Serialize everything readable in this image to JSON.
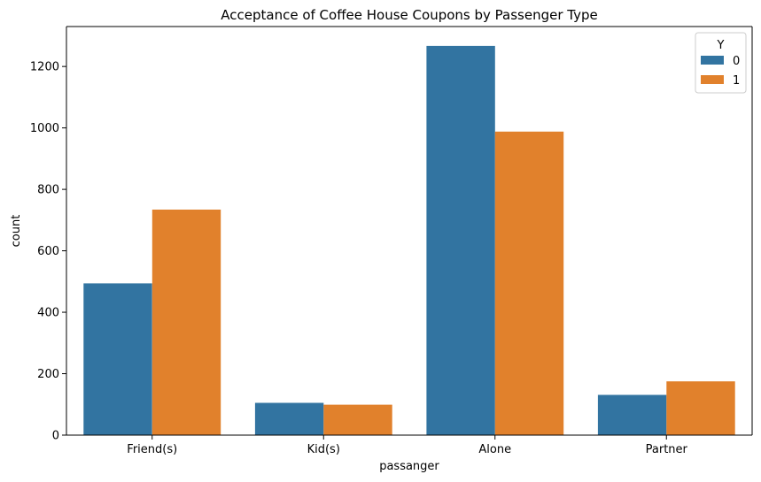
{
  "chart_data": {
    "type": "bar",
    "title": "Acceptance of Coffee House Coupons by Passenger Type",
    "xlabel": "passanger",
    "ylabel": "count",
    "categories": [
      "Friend(s)",
      "Kid(s)",
      "Alone",
      "Partner"
    ],
    "series": [
      {
        "name": "0",
        "color": "#3274a1",
        "values": [
          494,
          105,
          1267,
          131
        ]
      },
      {
        "name": "1",
        "color": "#e1812c",
        "values": [
          734,
          99,
          988,
          175
        ]
      }
    ],
    "ylim": [
      0,
      1330
    ],
    "yticks": [
      0,
      200,
      400,
      600,
      800,
      1000,
      1200
    ],
    "legend": {
      "title": "Y",
      "placement": "top-right"
    },
    "grid": false
  }
}
